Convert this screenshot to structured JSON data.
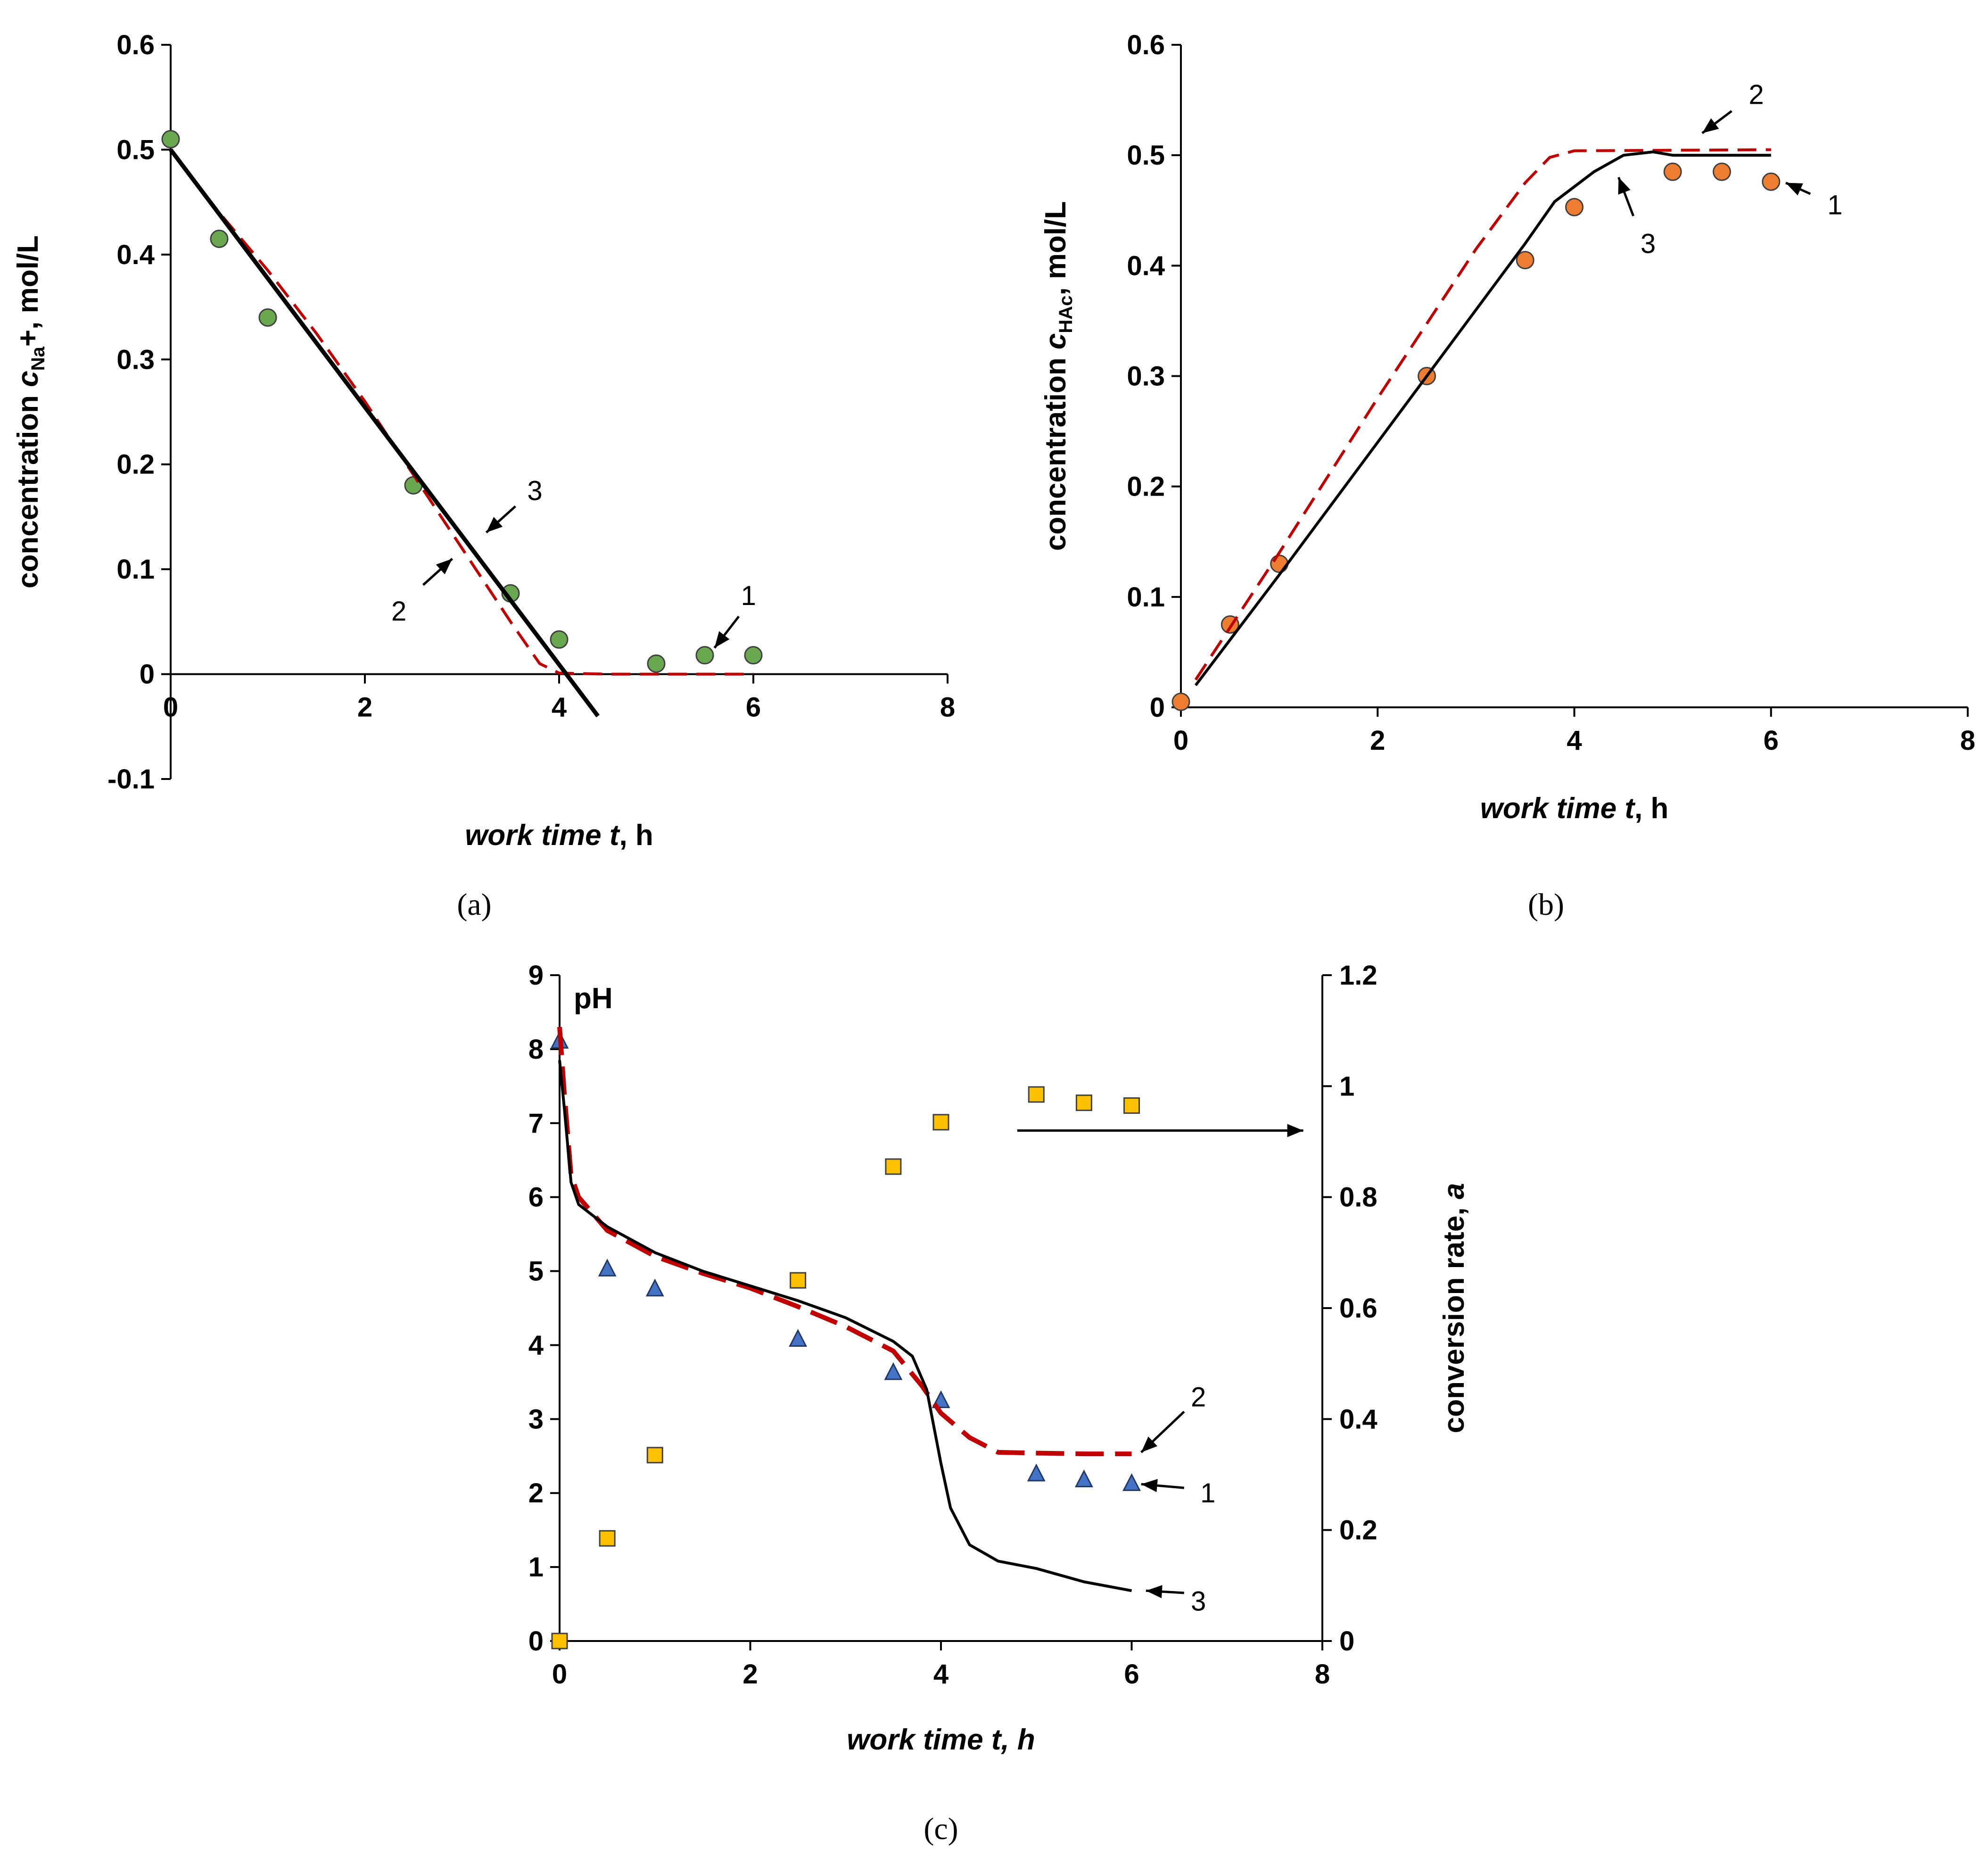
{
  "chart_data": [
    {
      "panel": "(a)",
      "type": "line",
      "xlabel": {
        "italic": "work time t",
        "rest": ", h"
      },
      "ylabel": {
        "pre": "concentration ",
        "var": "c",
        "sub": "Na",
        "post": "+, mol/L"
      },
      "xlim": [
        0,
        8
      ],
      "ylim": [
        -0.1,
        0.6
      ],
      "xticks": [
        "0",
        "2",
        "4",
        "6",
        "8"
      ],
      "yticks": [
        "-0.1",
        "0",
        "0.1",
        "0.2",
        "0.3",
        "0.4",
        "0.5",
        "0.6"
      ],
      "series": [
        {
          "label": "1",
          "kind": "points",
          "color": "#6aa84f",
          "points": [
            [
              0,
              0.51
            ],
            [
              0.5,
              0.415
            ],
            [
              1,
              0.34
            ],
            [
              2.5,
              0.18
            ],
            [
              3.5,
              0.077
            ],
            [
              4,
              0.033
            ],
            [
              5,
              0.01
            ],
            [
              5.5,
              0.018
            ],
            [
              6,
              0.018
            ]
          ]
        },
        {
          "label": "2",
          "kind": "dashed",
          "color": "#c00000",
          "points": [
            [
              0,
              0.5
            ],
            [
              0.5,
              0.44
            ],
            [
              1,
              0.385
            ],
            [
              1.5,
              0.325
            ],
            [
              2,
              0.26
            ],
            [
              2.5,
              0.19
            ],
            [
              3,
              0.12
            ],
            [
              3.5,
              0.05
            ],
            [
              3.8,
              0.01
            ],
            [
              4,
              0.001
            ],
            [
              4.5,
              0
            ],
            [
              6,
              0
            ]
          ]
        },
        {
          "label": "3",
          "kind": "solid",
          "color": "#000000",
          "points": [
            [
              0,
              0.5
            ],
            [
              4.4,
              -0.04
            ]
          ]
        }
      ],
      "annotations": [
        {
          "text": "1",
          "tx": 5.95,
          "ty": 0.075,
          "ax": 5.85,
          "ay": 0.055,
          "bx": 5.6,
          "by": 0.025
        },
        {
          "text": "2",
          "tx": 2.35,
          "ty": 0.06,
          "ax": 2.6,
          "ay": 0.085,
          "bx": 2.9,
          "by": 0.11
        },
        {
          "text": "3",
          "tx": 3.75,
          "ty": 0.175,
          "ax": 3.55,
          "ay": 0.16,
          "bx": 3.25,
          "by": 0.135
        }
      ]
    },
    {
      "panel": "(b)",
      "type": "line",
      "xlabel": {
        "italic": "work time t",
        "rest": ", h"
      },
      "ylabel": {
        "pre": "concentration ",
        "var": "c",
        "sub": "HAc",
        "post": ", mol/L"
      },
      "xlim": [
        0,
        8
      ],
      "ylim": [
        0,
        0.6
      ],
      "xticks": [
        "0",
        "2",
        "4",
        "6",
        "8"
      ],
      "yticks": [
        "0",
        "0.1",
        "0.2",
        "0.3",
        "0.4",
        "0.5",
        "0.6"
      ],
      "series": [
        {
          "label": "1",
          "kind": "points",
          "color": "#ed7d31",
          "points": [
            [
              0,
              0.005
            ],
            [
              0.5,
              0.075
            ],
            [
              1,
              0.13
            ],
            [
              2.5,
              0.3
            ],
            [
              3.5,
              0.405
            ],
            [
              4,
              0.453
            ],
            [
              5,
              0.485
            ],
            [
              5.5,
              0.485
            ],
            [
              6,
              0.476
            ]
          ]
        },
        {
          "label": "2",
          "kind": "dashed",
          "color": "#c00000",
          "points": [
            [
              0.15,
              0.025
            ],
            [
              1,
              0.14
            ],
            [
              2,
              0.28
            ],
            [
              3,
              0.415
            ],
            [
              3.5,
              0.475
            ],
            [
              3.75,
              0.498
            ],
            [
              4,
              0.504
            ],
            [
              6,
              0.505
            ]
          ]
        },
        {
          "label": "3",
          "kind": "solid",
          "color": "#000000",
          "points": [
            [
              0.15,
              0.02
            ],
            [
              1,
              0.12
            ],
            [
              2,
              0.24
            ],
            [
              3,
              0.36
            ],
            [
              3.5,
              0.42
            ],
            [
              3.8,
              0.458
            ],
            [
              4.2,
              0.485
            ],
            [
              4.5,
              0.5
            ],
            [
              4.8,
              0.503
            ],
            [
              5,
              0.5
            ],
            [
              6,
              0.5
            ]
          ]
        }
      ],
      "annotations": [
        {
          "text": "1",
          "tx": 6.65,
          "ty": 0.455,
          "ax": 6.4,
          "ay": 0.465,
          "bx": 6.15,
          "by": 0.475
        },
        {
          "text": "2",
          "tx": 5.85,
          "ty": 0.555,
          "ax": 5.6,
          "ay": 0.54,
          "bx": 5.3,
          "by": 0.52
        },
        {
          "text": "3",
          "tx": 4.75,
          "ty": 0.42,
          "ax": 4.6,
          "ay": 0.445,
          "bx": 4.45,
          "by": 0.48
        }
      ]
    },
    {
      "panel": "(c)",
      "type": "line",
      "xlabel": {
        "italic": "work time t, h",
        "rest": ""
      },
      "ylabel_left": "pH",
      "ylabel_right": {
        "pre": "conversion rate, ",
        "var": "a"
      },
      "xlim": [
        0,
        8
      ],
      "ylim": [
        0,
        9
      ],
      "y2lim": [
        0,
        1.2
      ],
      "xticks": [
        "0",
        "2",
        "4",
        "6",
        "8"
      ],
      "yticks": [
        "0",
        "1",
        "2",
        "3",
        "4",
        "5",
        "6",
        "7",
        "8",
        "9"
      ],
      "y2ticks": [
        "0",
        "0.2",
        "0.4",
        "0.6",
        "0.8",
        "1",
        "1.2"
      ],
      "series": [
        {
          "label": "1",
          "kind": "triangles",
          "color": "#4472c4",
          "axis": "left",
          "points": [
            [
              0,
              8.1
            ],
            [
              0.5,
              5.02
            ],
            [
              1,
              4.75
            ],
            [
              2.5,
              4.07
            ],
            [
              3.5,
              3.62
            ],
            [
              4,
              3.24
            ],
            [
              5,
              2.25
            ],
            [
              5.5,
              2.17
            ],
            [
              6,
              2.12
            ]
          ]
        },
        {
          "label": "conversion",
          "kind": "squares",
          "color": "#ffc000",
          "axis": "right",
          "points": [
            [
              0,
              0
            ],
            [
              0.5,
              0.185
            ],
            [
              1,
              0.335
            ],
            [
              2.5,
              0.65
            ],
            [
              3.5,
              0.855
            ],
            [
              4,
              0.935
            ],
            [
              5,
              0.985
            ],
            [
              5.5,
              0.97
            ],
            [
              6,
              0.965
            ]
          ]
        },
        {
          "label": "2",
          "kind": "dashed",
          "color": "#c00000",
          "axis": "left",
          "points": [
            [
              0,
              8.3
            ],
            [
              0.05,
              7.4
            ],
            [
              0.12,
              6.3
            ],
            [
              0.2,
              6.0
            ],
            [
              0.5,
              5.55
            ],
            [
              1,
              5.2
            ],
            [
              1.5,
              4.97
            ],
            [
              2,
              4.77
            ],
            [
              2.5,
              4.52
            ],
            [
              3,
              4.25
            ],
            [
              3.5,
              3.92
            ],
            [
              3.8,
              3.45
            ],
            [
              4,
              3.08
            ],
            [
              4.3,
              2.75
            ],
            [
              4.6,
              2.55
            ],
            [
              5,
              2.54
            ],
            [
              5.5,
              2.53
            ],
            [
              6,
              2.53
            ]
          ]
        },
        {
          "label": "3",
          "kind": "solid",
          "color": "#000000",
          "axis": "left",
          "points": [
            [
              0,
              7.85
            ],
            [
              0.05,
              7.2
            ],
            [
              0.12,
              6.2
            ],
            [
              0.2,
              5.9
            ],
            [
              0.5,
              5.6
            ],
            [
              1,
              5.25
            ],
            [
              1.5,
              5.0
            ],
            [
              2,
              4.8
            ],
            [
              2.5,
              4.6
            ],
            [
              3,
              4.37
            ],
            [
              3.5,
              4.05
            ],
            [
              3.7,
              3.85
            ],
            [
              3.85,
              3.4
            ],
            [
              4,
              2.4
            ],
            [
              4.1,
              1.8
            ],
            [
              4.3,
              1.3
            ],
            [
              4.6,
              1.08
            ],
            [
              5,
              0.98
            ],
            [
              5.5,
              0.8
            ],
            [
              6,
              0.68
            ]
          ]
        }
      ],
      "arrow_to_right_axis": {
        "y": 0.92,
        "x1": 4.8,
        "x2": 7.8
      },
      "annotations": [
        {
          "text": "1",
          "tx": 6.8,
          "ty": 2.0,
          "ax": 6.55,
          "ay": 2.07,
          "bx": 6.1,
          "by": 2.12
        },
        {
          "text": "2",
          "tx": 6.7,
          "ty": 3.3,
          "ax": 6.55,
          "ay": 3.1,
          "bx": 6.1,
          "by": 2.55
        },
        {
          "text": "3",
          "tx": 6.7,
          "ty": 0.54,
          "ax": 6.55,
          "ay": 0.65,
          "bx": 6.15,
          "by": 0.68
        }
      ]
    }
  ]
}
